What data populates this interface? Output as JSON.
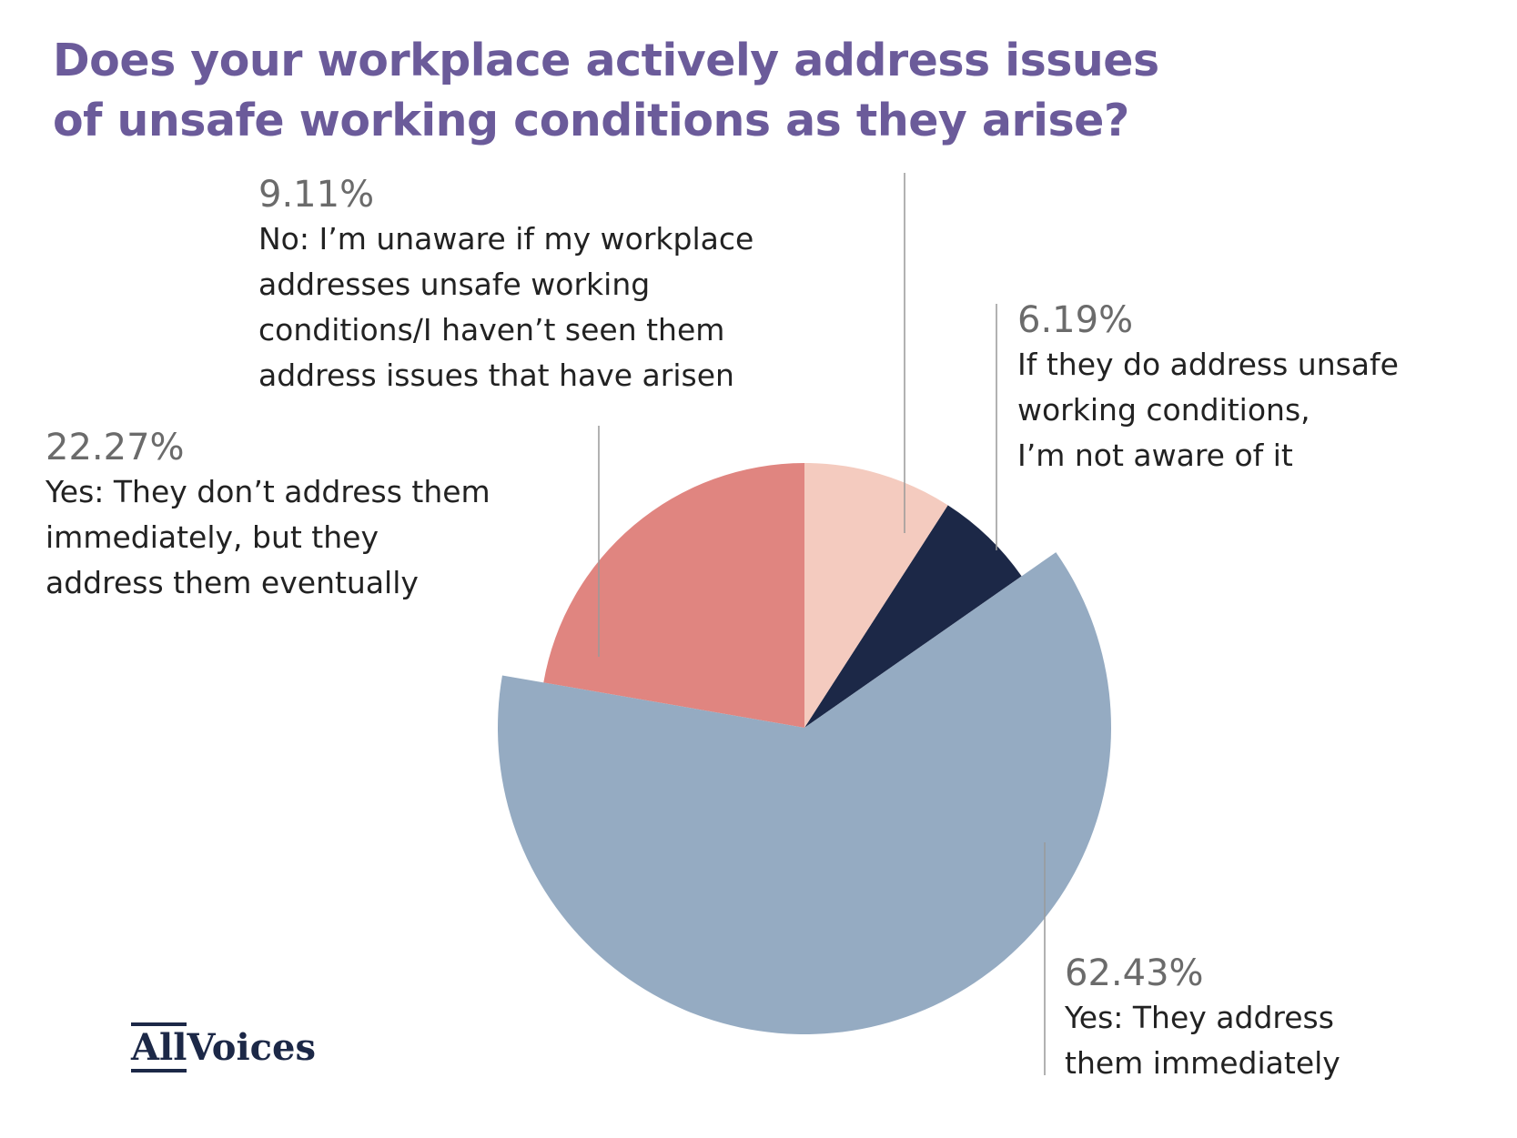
{
  "chart_data": {
    "type": "pie",
    "title": "Does your workplace actively address issues\nof unsafe working conditions as they arise?",
    "categories": [
      "No: I’m unaware if my workplace\naddresses unsafe working\nconditions/I haven’t seen them\naddress issues that have arisen",
      "If they do address unsafe\nworking conditions,\nI’m not aware of it",
      "Yes: They address\nthem immediately",
      "Yes: They don’t address them\nimmediately, but they\naddress them eventually"
    ],
    "values": [
      9.11,
      6.19,
      62.43,
      22.27
    ],
    "value_labels": [
      "9.11%",
      "6.19%",
      "62.43%",
      "22.27%"
    ],
    "colors": [
      "#f4cbbf",
      "#1c2847",
      "#95abc2",
      "#e08580"
    ]
  },
  "logo": {
    "part1": "All",
    "part2": "Voices"
  }
}
